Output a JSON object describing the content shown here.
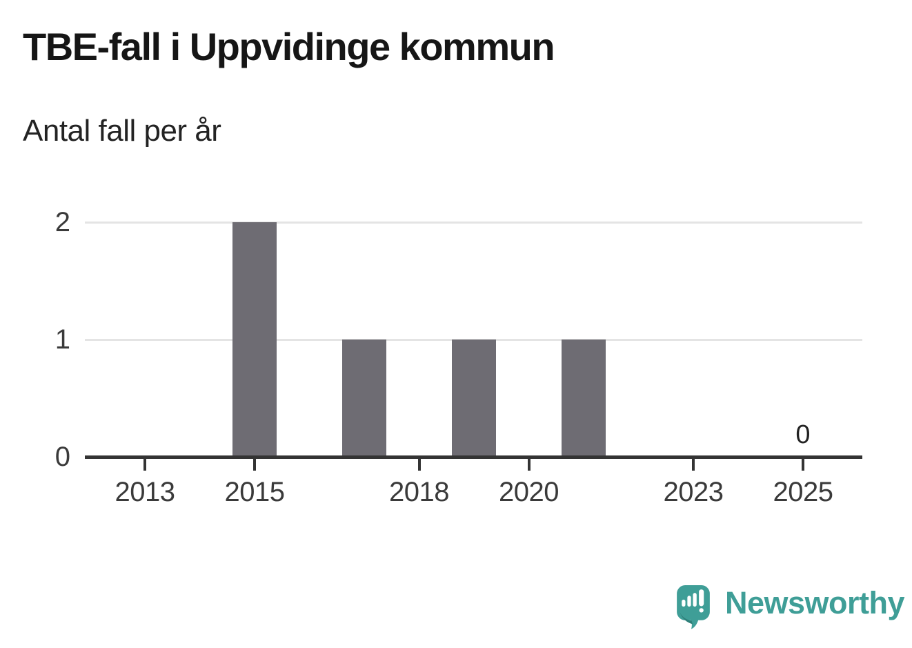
{
  "header": {
    "title": "TBE-fall i Uppvidinge kommun",
    "subtitle": "Antal fall per år"
  },
  "chart_data": {
    "type": "bar",
    "title": "TBE-fall i Uppvidinge kommun",
    "subtitle": "Antal fall per år",
    "categories": [
      2012,
      2013,
      2014,
      2015,
      2016,
      2017,
      2018,
      2019,
      2020,
      2021,
      2022,
      2023,
      2024,
      2025
    ],
    "values": [
      0,
      0,
      0,
      2,
      0,
      1,
      0,
      1,
      0,
      1,
      0,
      0,
      0,
      0
    ],
    "xlabel": "",
    "ylabel": "Antal fall per år",
    "ylim": [
      0,
      2
    ],
    "yticks": [
      0,
      1,
      2
    ],
    "xticks": [
      2013,
      2015,
      2018,
      2020,
      2023,
      2025
    ],
    "grid": true,
    "legend_position": "none",
    "annotation": {
      "x": 2025,
      "label": "0"
    }
  },
  "colors": {
    "bar": "#6e6c73",
    "grid": "#e4e4e4",
    "axis": "#343434",
    "tick_text": "#3a3a3a",
    "title_text": "#161616",
    "brand_teal": "#3f9e97",
    "brand_teal_dark": "#2e7f79"
  },
  "branding": {
    "logo_text": "Newsworthy"
  }
}
